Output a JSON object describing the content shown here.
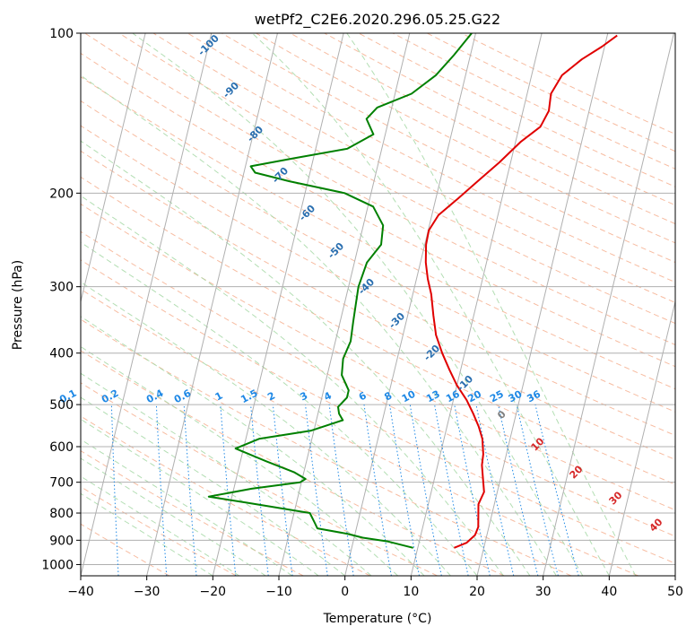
{
  "chart_data": {
    "type": "line",
    "title": "wetPf2_C2E6.2020.296.05.25.G22",
    "xlabel": "Temperature (°C)",
    "ylabel": "Pressure (hPa)",
    "xlim": [
      -40,
      50
    ],
    "ylim": [
      1050,
      100
    ],
    "y_scale": "log",
    "x_ticks": [
      "−40",
      "−30",
      "−20",
      "−10",
      "0",
      "10",
      "20",
      "30",
      "40",
      "50"
    ],
    "y_ticks": [
      {
        "value": 100,
        "label": "100"
      },
      {
        "value": 200,
        "label": "200"
      },
      {
        "value": 300,
        "label": "300"
      },
      {
        "value": 400,
        "label": "400"
      },
      {
        "value": 500,
        "label": "500"
      },
      {
        "value": 600,
        "label": "600"
      },
      {
        "value": 700,
        "label": "700"
      },
      {
        "value": 800,
        "label": "800"
      },
      {
        "value": 900,
        "label": "900"
      },
      {
        "value": 1000,
        "label": "1000"
      }
    ],
    "grid": true,
    "series": [
      {
        "color": "#e00000",
        "points": [
          [
            15.5,
            930
          ],
          [
            17.2,
            910
          ],
          [
            18.2,
            880
          ],
          [
            18.4,
            850
          ],
          [
            18.0,
            810
          ],
          [
            17.6,
            770
          ],
          [
            18.0,
            730
          ],
          [
            17.2,
            680
          ],
          [
            16.7,
            650
          ],
          [
            16.5,
            620
          ],
          [
            15.8,
            580
          ],
          [
            14.8,
            550
          ],
          [
            13.5,
            520
          ],
          [
            12.0,
            490
          ],
          [
            10.0,
            460
          ],
          [
            8.3,
            430
          ],
          [
            6.6,
            400
          ],
          [
            5.0,
            370
          ],
          [
            3.9,
            340
          ],
          [
            2.8,
            310
          ],
          [
            1.7,
            290
          ],
          [
            0.8,
            270
          ],
          [
            0.2,
            250
          ],
          [
            0.1,
            235
          ],
          [
            1.0,
            220
          ],
          [
            3.3,
            205
          ],
          [
            5.7,
            190
          ],
          [
            8.3,
            175
          ],
          [
            10.8,
            160
          ],
          [
            13.2,
            150
          ],
          [
            13.9,
            140
          ],
          [
            13.6,
            130
          ],
          [
            14.6,
            120
          ],
          [
            17.0,
            112
          ],
          [
            19.6,
            106
          ],
          [
            21.5,
            101
          ]
        ]
      },
      {
        "color": "#008000",
        "points": [
          [
            9.3,
            930
          ],
          [
            5.3,
            905
          ],
          [
            1.3,
            890
          ],
          [
            -1.2,
            875
          ],
          [
            -5.9,
            855
          ],
          [
            -6.5,
            835
          ],
          [
            -7.6,
            800
          ],
          [
            -17.5,
            765
          ],
          [
            -23.5,
            745
          ],
          [
            -17.3,
            720
          ],
          [
            -10.2,
            700
          ],
          [
            -9.5,
            690
          ],
          [
            -11.5,
            670
          ],
          [
            -16.0,
            640
          ],
          [
            -21.2,
            605
          ],
          [
            -18.0,
            580
          ],
          [
            -10.5,
            560
          ],
          [
            -6.0,
            535
          ],
          [
            -6.8,
            520
          ],
          [
            -7.2,
            505
          ],
          [
            -6.2,
            485
          ],
          [
            -6.2,
            470
          ],
          [
            -7.8,
            440
          ],
          [
            -8.2,
            410
          ],
          [
            -7.7,
            380
          ],
          [
            -8.0,
            350
          ],
          [
            -8.3,
            320
          ],
          [
            -8.5,
            300
          ],
          [
            -8.1,
            270
          ],
          [
            -6.6,
            250
          ],
          [
            -7.0,
            230
          ],
          [
            -9.2,
            212
          ],
          [
            -14.0,
            200
          ],
          [
            -22.8,
            190
          ],
          [
            -28.3,
            183
          ],
          [
            -29.2,
            178
          ],
          [
            -23.0,
            172
          ],
          [
            -15.2,
            165
          ],
          [
            -11.8,
            155
          ],
          [
            -13.4,
            145
          ],
          [
            -12.2,
            138
          ],
          [
            -7.5,
            130
          ],
          [
            -4.5,
            120
          ],
          [
            -2.5,
            110
          ],
          [
            -0.6,
            100
          ]
        ]
      }
    ],
    "annotations": {
      "mixing_ratio_labels": [
        "0.1",
        "0.2",
        "0.4",
        "0.6",
        "1",
        "1.5",
        "2",
        "3",
        "4",
        "6",
        "8",
        "10",
        "13",
        "16",
        "20",
        "25",
        "30",
        "36"
      ],
      "dry_adiabat_labels": [
        "-100",
        "-90",
        "-80",
        "-70",
        "-60",
        "-50",
        "-40",
        "-30",
        "-20",
        "-10"
      ],
      "moist_adiabat_labels": [
        "0",
        "10",
        "20",
        "30",
        "40"
      ]
    }
  }
}
